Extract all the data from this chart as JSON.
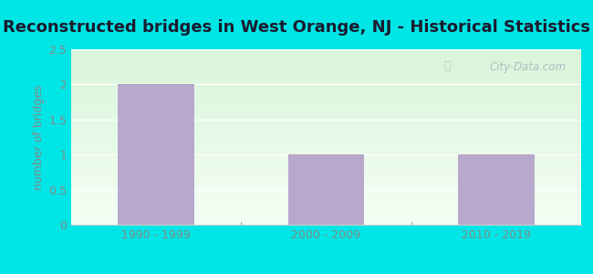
{
  "title": "Reconstructed bridges in West Orange, NJ - Historical Statistics",
  "categories": [
    "1990 - 1999",
    "2000 - 2009",
    "2010 - 2019"
  ],
  "values": [
    2,
    1,
    1
  ],
  "bar_color": "#b8a8cc",
  "ylabel": "number of bridges",
  "ylim": [
    0,
    2.5
  ],
  "yticks": [
    0,
    0.5,
    1,
    1.5,
    2,
    2.5
  ],
  "bg_outer": "#00e5e5",
  "bg_plot_top": "#daf0da",
  "bg_plot_bottom": "#f5fff5",
  "grid_color": "#ffffff",
  "watermark": "City-Data.com",
  "title_fontsize": 13,
  "ylabel_fontsize": 9,
  "tick_fontsize": 9,
  "title_color": "#1a1a2e",
  "tick_color": "#888888",
  "ylabel_color": "#888888"
}
